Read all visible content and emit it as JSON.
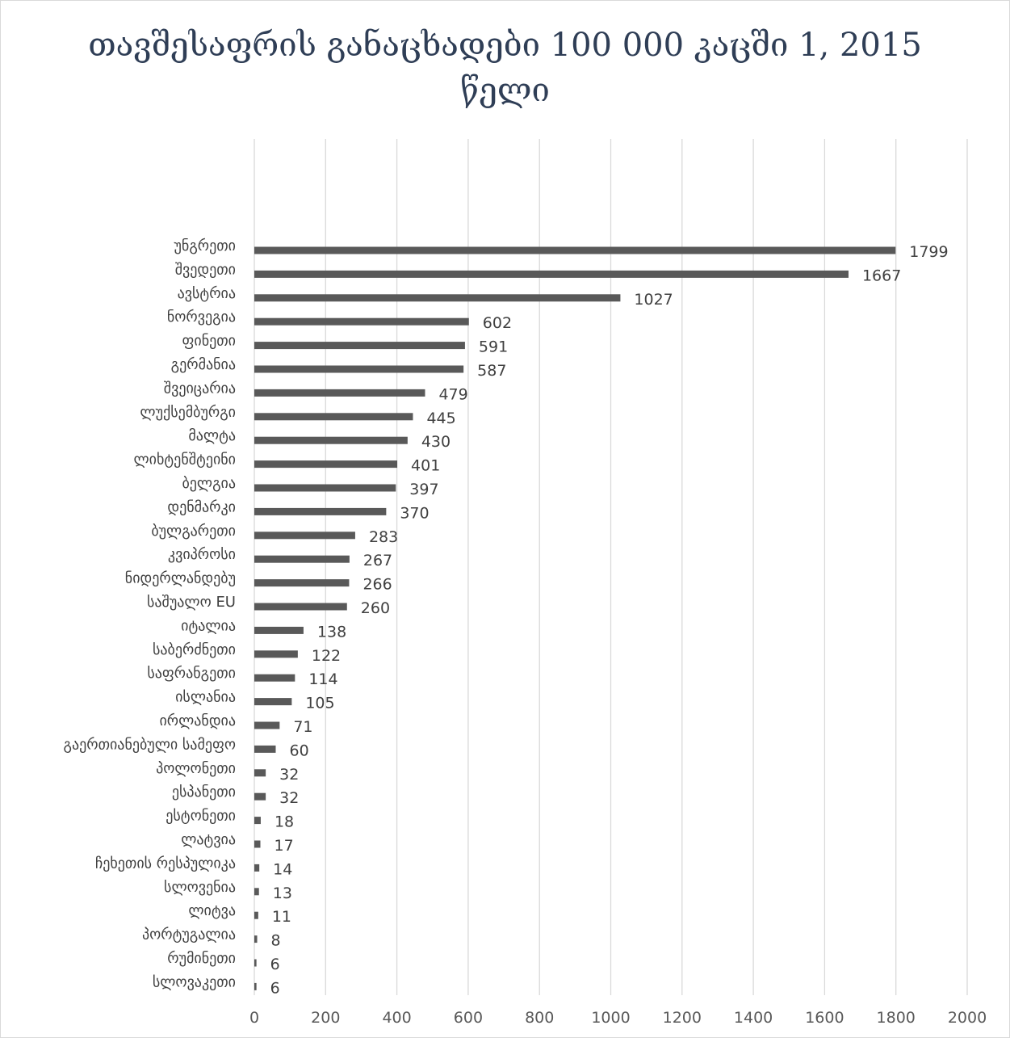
{
  "chart_data": {
    "type": "bar",
    "orientation": "horizontal",
    "title_line1": "თავშესაფრის განაცხადები 100 000  კაცში 1, 2015",
    "title_line2": "წელი",
    "categories": [
      "უნგრეთი",
      "შვედეთი",
      "ავსტრია",
      "ნორვეგია",
      "ფინეთი",
      "გერმანია",
      "შვეიცარია",
      "ლუქსემბურგი",
      "მალტა",
      "ლიხტენშტეინი",
      "ბელგია",
      "დენმარკი",
      "ბულგარეთი",
      "კვიპროსი",
      "ნიდერლანდებუ",
      "საშუალო EU",
      "იტალია",
      "საბერძნეთი",
      "საფრანგეთი",
      "ისლანია",
      "ირლანდია",
      "გაერთიანებული სამეფო",
      "პოლონეთი",
      "ესპანეთი",
      "ესტონეთი",
      "ლატვია",
      "ჩეხეთის რესპულიკა",
      "სლოვენია",
      "ლიტვა",
      "პორტუგალია",
      "რუმინეთი",
      "სლოვაკეთი"
    ],
    "values": [
      1799,
      1667,
      1027,
      602,
      591,
      587,
      479,
      445,
      430,
      401,
      397,
      370,
      283,
      267,
      266,
      260,
      138,
      122,
      114,
      105,
      71,
      60,
      32,
      32,
      18,
      17,
      14,
      13,
      11,
      8,
      6,
      6
    ],
    "xlim": [
      0,
      2000
    ],
    "xticks": [
      0,
      200,
      400,
      600,
      800,
      1000,
      1200,
      1400,
      1600,
      1800,
      2000
    ],
    "grid": "vertical",
    "bar_color": "#595959",
    "grid_color": "#d9d9d9",
    "title_color": "#2f3e56"
  }
}
